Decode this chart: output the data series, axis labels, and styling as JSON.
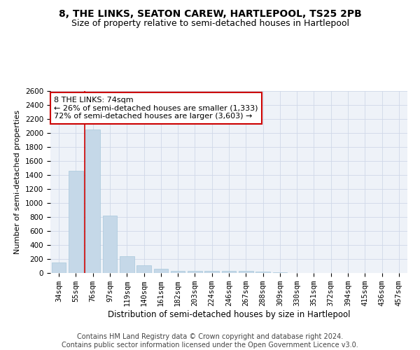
{
  "title": "8, THE LINKS, SEATON CAREW, HARTLEPOOL, TS25 2PB",
  "subtitle": "Size of property relative to semi-detached houses in Hartlepool",
  "xlabel": "Distribution of semi-detached houses by size in Hartlepool",
  "ylabel": "Number of semi-detached properties",
  "categories": [
    "34sqm",
    "55sqm",
    "76sqm",
    "97sqm",
    "119sqm",
    "140sqm",
    "161sqm",
    "182sqm",
    "203sqm",
    "224sqm",
    "246sqm",
    "267sqm",
    "288sqm",
    "309sqm",
    "330sqm",
    "351sqm",
    "372sqm",
    "394sqm",
    "415sqm",
    "436sqm",
    "457sqm"
  ],
  "values": [
    150,
    1460,
    2050,
    820,
    245,
    110,
    65,
    35,
    30,
    30,
    30,
    30,
    20,
    15,
    0,
    0,
    0,
    0,
    0,
    0,
    0
  ],
  "bar_color": "#c5d8e8",
  "bar_edge_color": "#a8c8dc",
  "highlight_line_color": "#cc0000",
  "annotation_text": "8 THE LINKS: 74sqm\n← 26% of semi-detached houses are smaller (1,333)\n72% of semi-detached houses are larger (3,603) →",
  "annotation_box_color": "#ffffff",
  "annotation_box_edge": "#cc0000",
  "ylim": [
    0,
    2600
  ],
  "yticks": [
    0,
    200,
    400,
    600,
    800,
    1000,
    1200,
    1400,
    1600,
    1800,
    2000,
    2200,
    2400,
    2600
  ],
  "grid_color": "#d0d8e8",
  "background_color": "#eef2f8",
  "footer": "Contains HM Land Registry data © Crown copyright and database right 2024.\nContains public sector information licensed under the Open Government Licence v3.0.",
  "title_fontsize": 10,
  "subtitle_fontsize": 9,
  "annotation_fontsize": 8,
  "footer_fontsize": 7,
  "ylabel_fontsize": 8,
  "xlabel_fontsize": 8.5,
  "tick_fontsize": 7.5
}
